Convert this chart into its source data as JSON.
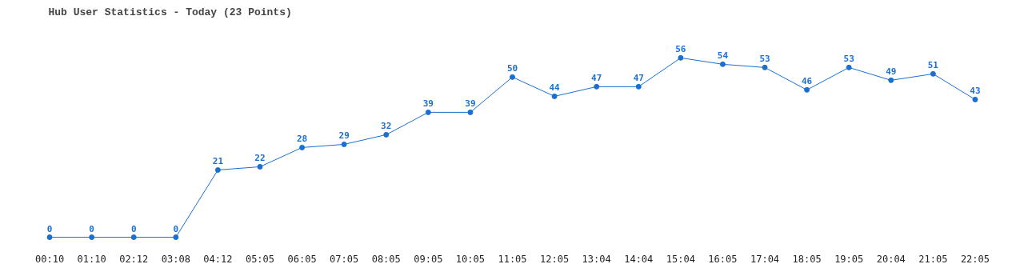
{
  "chart_data": {
    "type": "line",
    "title": "Hub User Statistics - Today (23 Points)",
    "categories": [
      "00:10",
      "01:10",
      "02:12",
      "03:08",
      "04:12",
      "05:05",
      "06:05",
      "07:05",
      "08:05",
      "09:05",
      "10:05",
      "11:05",
      "12:05",
      "13:04",
      "14:04",
      "15:04",
      "16:05",
      "17:04",
      "18:05",
      "19:05",
      "20:04",
      "21:05",
      "22:05"
    ],
    "series": [
      {
        "color": "#1a6fd0",
        "values": [
          0,
          0,
          0,
          0,
          21,
          22,
          28,
          29,
          32,
          39,
          39,
          50,
          44,
          47,
          47,
          56,
          54,
          53,
          46,
          53,
          49,
          51,
          43
        ]
      }
    ],
    "data_labels": true,
    "marker": "circle",
    "line_style": "solid",
    "grid": false
  }
}
